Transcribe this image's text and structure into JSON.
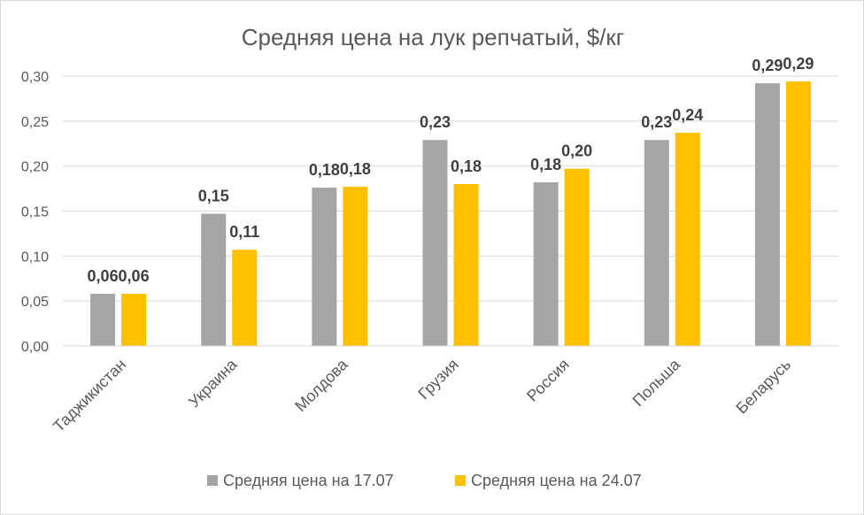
{
  "chart_data": {
    "type": "bar",
    "title": "Средняя цена на лук репчатый, $/кг",
    "xlabel": "",
    "ylabel": "",
    "categories": [
      "Таджикистан",
      "Украина",
      "Молдова",
      "Грузия",
      "Россия",
      "Польша",
      "Беларусь"
    ],
    "series": [
      {
        "name": "Средняя цена на 17.07",
        "color": "#a5a5a5",
        "values": [
          0.058,
          0.147,
          0.176,
          0.229,
          0.182,
          0.229,
          0.292
        ],
        "labels": [
          "0,06",
          "0,15",
          "0,18",
          "0,23",
          "0,18",
          "0,23",
          "0,29"
        ]
      },
      {
        "name": "Средняя цена на 24.07",
        "color": "#ffc000",
        "values": [
          0.058,
          0.107,
          0.177,
          0.18,
          0.197,
          0.237,
          0.294
        ],
        "labels": [
          "0,06",
          "0,11",
          "0,18",
          "0,18",
          "0,20",
          "0,24",
          "0,29"
        ]
      }
    ],
    "ylim": [
      0,
      0.3
    ],
    "yticks": [
      0,
      0.05,
      0.1,
      0.15,
      0.2,
      0.25,
      0.3
    ],
    "ytick_labels": [
      "0,00",
      "0,05",
      "0,10",
      "0,15",
      "0,20",
      "0,25",
      "0,30"
    ],
    "grid": true,
    "legend_position": "bottom"
  }
}
